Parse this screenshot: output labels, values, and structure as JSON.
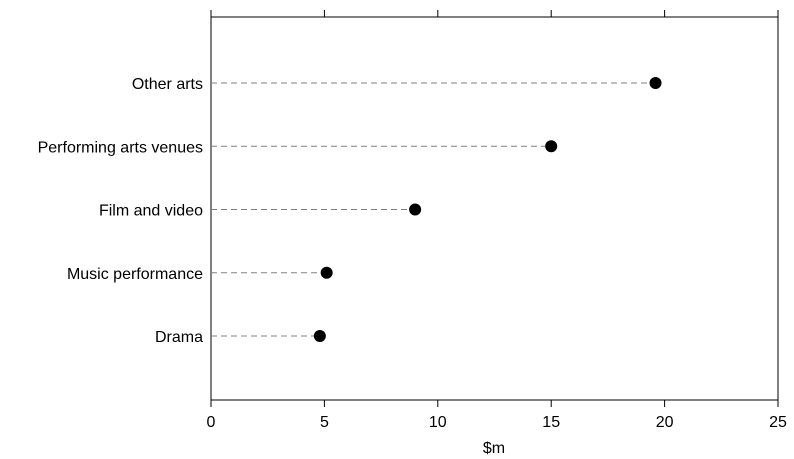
{
  "chart_data": {
    "type": "scatter",
    "title": "",
    "xlabel": "$m",
    "ylabel": "",
    "xlim": [
      0,
      25
    ],
    "xticks": [
      0,
      5,
      10,
      15,
      20,
      25
    ],
    "xtick_labels": [
      "0",
      "5",
      "10",
      "15",
      "20",
      "25"
    ],
    "categories": [
      "Other arts",
      "Performing arts venues",
      "Film and video",
      "Music performance",
      "Drama"
    ],
    "values": [
      19.6,
      15.0,
      9.0,
      5.1,
      4.8
    ],
    "grid": false,
    "legend": "none",
    "colors": {
      "marker": "#000000",
      "leader_line": "#808080",
      "axis": "#000000"
    }
  }
}
